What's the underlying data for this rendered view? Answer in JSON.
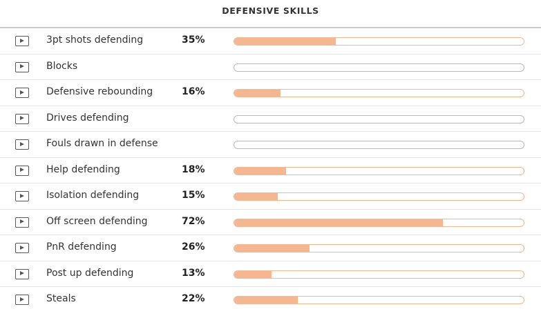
{
  "header": {
    "title": "DEFENSIVE SKILLS"
  },
  "colors": {
    "bar_fill": "#f5b792",
    "bar_border_active": "#f3b792",
    "bar_border_empty": "#b8b8b8",
    "icon": "#555555"
  },
  "skills": [
    {
      "label": "3pt shots defending",
      "percent": "35%",
      "value": 35,
      "icon": "play-video-icon"
    },
    {
      "label": "Blocks",
      "percent": "",
      "value": 0,
      "icon": "play-video-icon"
    },
    {
      "label": "Defensive rebounding",
      "percent": "16%",
      "value": 16,
      "icon": "play-video-icon"
    },
    {
      "label": "Drives defending",
      "percent": "",
      "value": 0,
      "icon": "play-video-icon"
    },
    {
      "label": "Fouls drawn in defense",
      "percent": "",
      "value": 0,
      "icon": "play-video-icon"
    },
    {
      "label": "Help defending",
      "percent": "18%",
      "value": 18,
      "icon": "play-video-icon"
    },
    {
      "label": "Isolation defending",
      "percent": "15%",
      "value": 15,
      "icon": "play-video-icon"
    },
    {
      "label": "Off screen defending",
      "percent": "72%",
      "value": 72,
      "icon": "play-video-icon"
    },
    {
      "label": "PnR defending",
      "percent": "26%",
      "value": 26,
      "icon": "play-video-icon"
    },
    {
      "label": "Post up defending",
      "percent": "13%",
      "value": 13,
      "icon": "play-video-icon"
    },
    {
      "label": "Steals",
      "percent": "22%",
      "value": 22,
      "icon": "play-video-icon"
    }
  ]
}
